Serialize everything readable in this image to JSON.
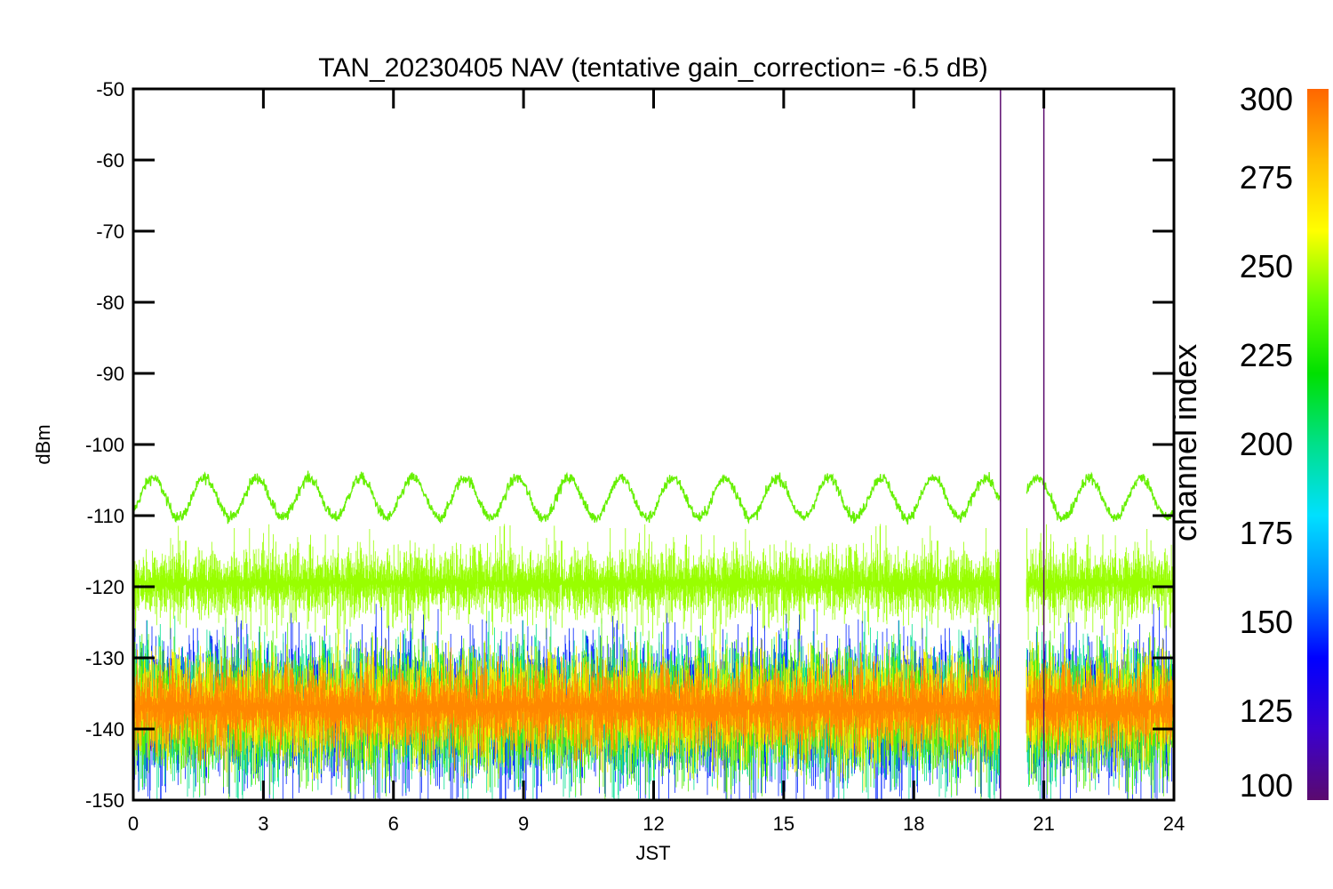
{
  "chart_data": {
    "type": "line",
    "title": "TAN_20230405 NAV (tentative gain_correction= -6.5 dB)",
    "xlabel": "JST",
    "ylabel": "dBm",
    "xlim": [
      0,
      24
    ],
    "ylim": [
      -150,
      -50
    ],
    "x_ticks": [
      0,
      3,
      6,
      9,
      12,
      15,
      18,
      21,
      24
    ],
    "y_ticks": [
      -50,
      -60,
      -70,
      -80,
      -90,
      -100,
      -110,
      -120,
      -130,
      -140,
      -150
    ],
    "grid": false,
    "data_gap_jst": [
      20.0,
      20.6
    ],
    "vertical_spikes_jst": [
      20.0,
      21.0
    ],
    "series": [
      {
        "kind": "sinusoid",
        "channel_index": 245,
        "color": "#66f000",
        "mean_dbm": -107.5,
        "amplitude_db": 2.8,
        "period_h": 1.2,
        "phase_jst": 0.45,
        "noise_db": 0.4
      },
      {
        "kind": "noise_band",
        "channel_index": 255,
        "color": "#99ff00",
        "mean_dbm": -119.5,
        "spread_db": 3.5,
        "spike_db": 7
      },
      {
        "kind": "noise_band",
        "channel_index": 140,
        "color": "#0022ff",
        "mean_dbm": -137.5,
        "spread_db": 7.5,
        "spike_db": 10
      },
      {
        "kind": "noise_band",
        "channel_index": 200,
        "color": "#00e090",
        "mean_dbm": -137.5,
        "spread_db": 7,
        "spike_db": 6
      },
      {
        "kind": "noise_band",
        "channel_index": 240,
        "color": "#55ee00",
        "mean_dbm": -137.5,
        "spread_db": 6.5,
        "spike_db": 5
      },
      {
        "kind": "noise_band",
        "channel_index": 270,
        "color": "#ffee00",
        "mean_dbm": -137.0,
        "spread_db": 5.5,
        "spike_db": 4
      },
      {
        "kind": "noise_band",
        "channel_index": 290,
        "color": "#ff8800",
        "mean_dbm": -137.0,
        "spread_db": 4.2,
        "spike_db": 2
      }
    ],
    "colorbar": {
      "label": "channel index",
      "min": 100,
      "max": 300,
      "ticks": [
        100,
        125,
        150,
        175,
        200,
        225,
        250,
        275,
        300
      ],
      "colormap": [
        "#5a0a6e",
        "#3a00d0",
        "#0000ff",
        "#0088ff",
        "#00e0ff",
        "#00e08a",
        "#00e000",
        "#66ff00",
        "#ffff00",
        "#ffbb00",
        "#ff6600"
      ]
    }
  }
}
